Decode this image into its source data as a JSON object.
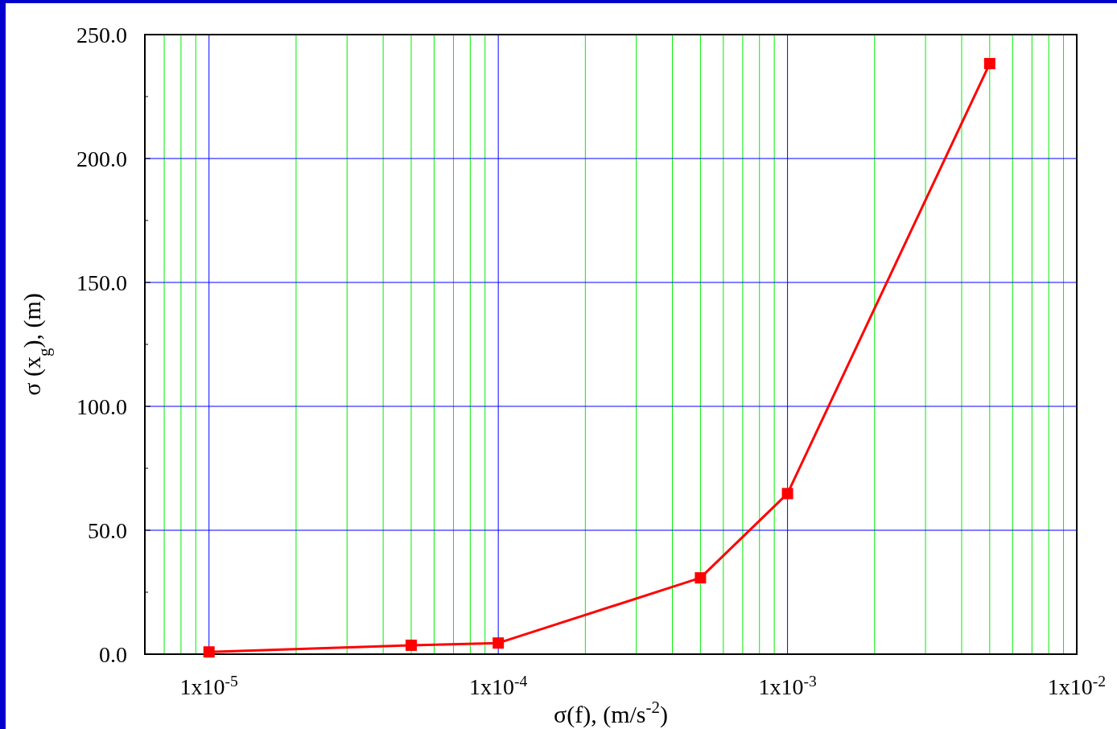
{
  "chart_data": {
    "type": "line",
    "xlabel": "σ(f), (m/s$^{-2}$)",
    "ylabel": "σ (x$_{g}$), (m)",
    "log": "x",
    "x": [
      1e-05,
      5e-05,
      0.0001,
      0.0005,
      0.001,
      0.005
    ],
    "series": [
      {
        "color": "#ff0000",
        "values": [
          0.9,
          3.6,
          4.5,
          30.8,
          64.8,
          238.3
        ]
      }
    ],
    "xlim": [
      6e-06,
      0.01
    ],
    "xticks": [
      {
        "value": 7e-06,
        "label": null
      },
      {
        "value": 8e-06,
        "label": null
      },
      {
        "value": 9e-06,
        "label": null
      },
      {
        "value": 1e-05,
        "label": "1x10$^{-5}$"
      },
      {
        "value": 2e-05,
        "label": null
      },
      {
        "value": 3e-05,
        "label": null
      },
      {
        "value": 4e-05,
        "label": null
      },
      {
        "value": 5e-05,
        "label": null
      },
      {
        "value": 6e-05,
        "label": null
      },
      {
        "value": 7e-05,
        "label": null
      },
      {
        "value": 8e-05,
        "label": null
      },
      {
        "value": 9e-05,
        "label": null
      },
      {
        "value": 0.0001,
        "label": "1x10$^{-4}$"
      },
      {
        "value": 0.0002,
        "label": null
      },
      {
        "value": 0.0003,
        "label": null
      },
      {
        "value": 0.0004,
        "label": null
      },
      {
        "value": 0.0005,
        "label": null
      },
      {
        "value": 0.0006,
        "label": null
      },
      {
        "value": 0.0007,
        "label": null
      },
      {
        "value": 0.0008,
        "label": null
      },
      {
        "value": 0.0009,
        "label": null
      },
      {
        "value": 0.001,
        "label": "1x10$^{-3}$"
      },
      {
        "value": 0.002,
        "label": null
      },
      {
        "value": 0.003,
        "label": null
      },
      {
        "value": 0.004,
        "label": null
      },
      {
        "value": 0.005,
        "label": null
      },
      {
        "value": 0.006,
        "label": null
      },
      {
        "value": 0.007,
        "label": null
      },
      {
        "value": 0.008,
        "label": null
      },
      {
        "value": 0.009,
        "label": null
      },
      {
        "value": 0.01,
        "label": "1x10$^{-2}$"
      }
    ],
    "ylim": [
      0,
      250
    ],
    "yticks": [
      {
        "value": 0,
        "label": "0.0"
      },
      {
        "value": 25,
        "label": null
      },
      {
        "value": 50,
        "label": "50.0"
      },
      {
        "value": 75,
        "label": null
      },
      {
        "value": 100,
        "label": "100.0"
      },
      {
        "value": 125,
        "label": null
      },
      {
        "value": 150,
        "label": "150.0"
      },
      {
        "value": 175,
        "label": null
      },
      {
        "value": 200,
        "label": "200.0"
      },
      {
        "value": 225,
        "label": null
      },
      {
        "value": 250,
        "label": "250.0"
      }
    ],
    "grid": true,
    "marker": "square",
    "line_style": "solid"
  }
}
